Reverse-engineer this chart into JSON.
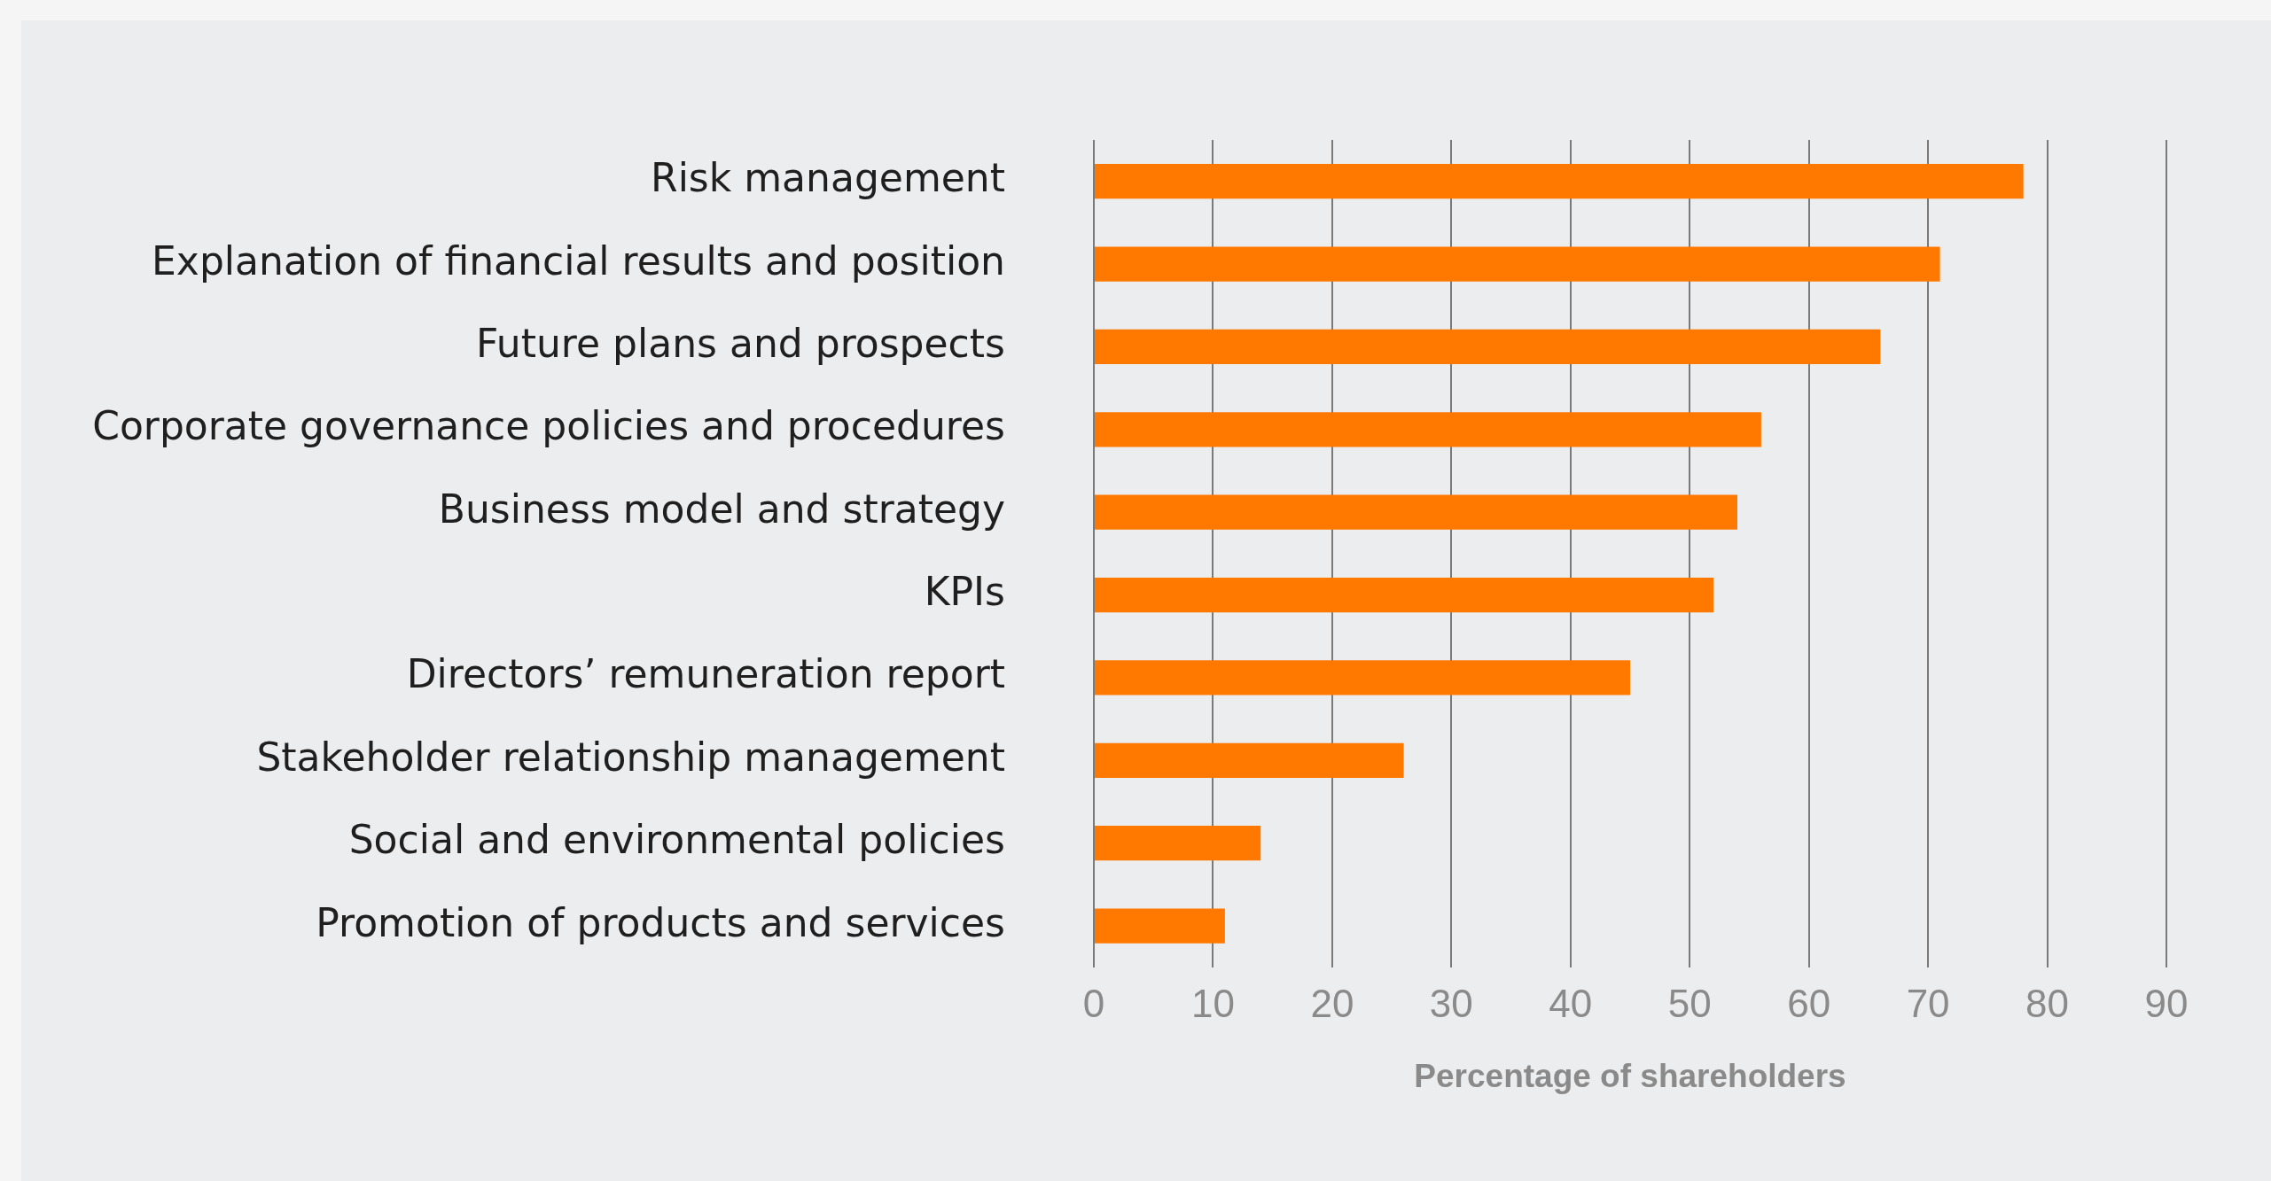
{
  "chart_data": {
    "type": "bar",
    "orientation": "horizontal",
    "xlabel": "Percentage of shareholders",
    "categories": [
      "Risk management",
      "Explanation of financial results and position",
      "Future plans and prospects",
      "Corporate governance policies and procedures",
      "Business model and strategy",
      "KPIs",
      "Directors’ remuneration report",
      "Stakeholder relationship management",
      "Social and environmental policies",
      "Promotion of products and services"
    ],
    "values": [
      78,
      71,
      66,
      56,
      54,
      52,
      45,
      26,
      14,
      11
    ],
    "color": "#ff7900",
    "xlim": [
      0,
      90
    ],
    "xticks": [
      0,
      10,
      20,
      30,
      40,
      50,
      60,
      70,
      80,
      90
    ],
    "grid": "x",
    "legend": false
  }
}
